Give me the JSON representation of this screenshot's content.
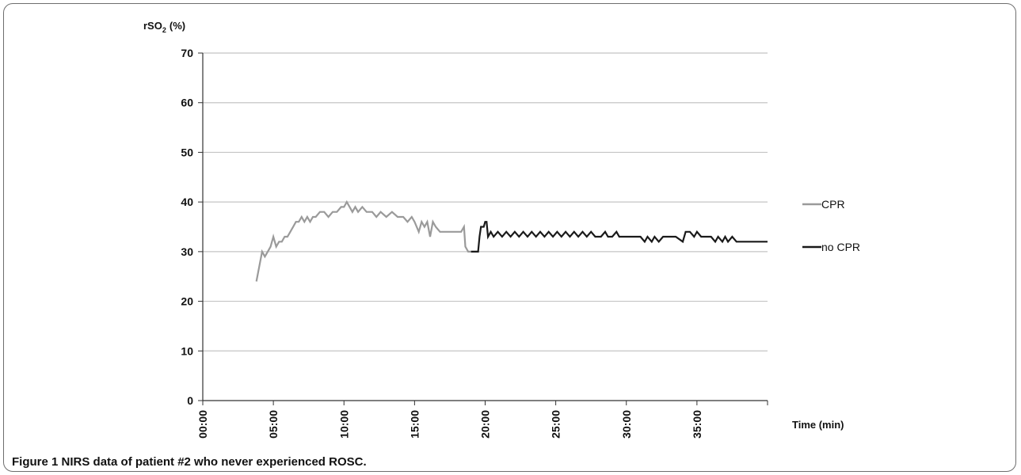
{
  "figure": {
    "label": "Figure 1",
    "caption": "NIRS data of patient #2 who never experienced ROSC."
  },
  "chart_data": {
    "type": "line",
    "ylabel_main": "rSO",
    "ylabel_sub": "2",
    "ylabel_unit": "(%)",
    "xlabel": "Time (min)",
    "ylim": [
      0,
      70
    ],
    "xlim": [
      0,
      40
    ],
    "yticks": [
      0,
      10,
      20,
      30,
      40,
      50,
      60,
      70
    ],
    "xticks": [
      {
        "v": 0,
        "label": "00:00"
      },
      {
        "v": 5,
        "label": "05:00"
      },
      {
        "v": 10,
        "label": "10:00"
      },
      {
        "v": 15,
        "label": "15:00"
      },
      {
        "v": 20,
        "label": "20:00"
      },
      {
        "v": 25,
        "label": "25:00"
      },
      {
        "v": 30,
        "label": "30:00"
      },
      {
        "v": 35,
        "label": "35:00"
      }
    ],
    "grid": true,
    "legend_position": "right",
    "series": [
      {
        "name": "CPR",
        "color": "#9a9a9a",
        "points": [
          [
            3.8,
            24
          ],
          [
            4.0,
            27
          ],
          [
            4.2,
            30
          ],
          [
            4.4,
            29
          ],
          [
            4.6,
            30
          ],
          [
            4.8,
            31
          ],
          [
            5.0,
            33
          ],
          [
            5.2,
            31
          ],
          [
            5.4,
            32
          ],
          [
            5.6,
            32
          ],
          [
            5.8,
            33
          ],
          [
            6.0,
            33
          ],
          [
            6.2,
            34
          ],
          [
            6.4,
            35
          ],
          [
            6.6,
            36
          ],
          [
            6.8,
            36
          ],
          [
            7.0,
            37
          ],
          [
            7.2,
            36
          ],
          [
            7.4,
            37
          ],
          [
            7.6,
            36
          ],
          [
            7.8,
            37
          ],
          [
            8.0,
            37
          ],
          [
            8.3,
            38
          ],
          [
            8.6,
            38
          ],
          [
            8.9,
            37
          ],
          [
            9.2,
            38
          ],
          [
            9.5,
            38
          ],
          [
            9.8,
            39
          ],
          [
            10.0,
            39
          ],
          [
            10.2,
            40
          ],
          [
            10.4,
            39
          ],
          [
            10.6,
            38
          ],
          [
            10.8,
            39
          ],
          [
            11.0,
            38
          ],
          [
            11.3,
            39
          ],
          [
            11.6,
            38
          ],
          [
            12.0,
            38
          ],
          [
            12.3,
            37
          ],
          [
            12.6,
            38
          ],
          [
            13.0,
            37
          ],
          [
            13.4,
            38
          ],
          [
            13.8,
            37
          ],
          [
            14.2,
            37
          ],
          [
            14.5,
            36
          ],
          [
            14.8,
            37
          ],
          [
            15.0,
            36
          ],
          [
            15.3,
            34
          ],
          [
            15.5,
            36
          ],
          [
            15.7,
            35
          ],
          [
            15.9,
            36
          ],
          [
            16.1,
            33
          ],
          [
            16.3,
            36
          ],
          [
            16.5,
            35
          ],
          [
            16.8,
            34
          ],
          [
            17.2,
            34
          ],
          [
            17.6,
            34
          ],
          [
            18.0,
            34
          ],
          [
            18.3,
            34
          ],
          [
            18.5,
            35
          ],
          [
            18.6,
            31
          ],
          [
            18.8,
            30
          ],
          [
            19.0,
            30
          ],
          [
            19.4,
            30
          ]
        ]
      },
      {
        "name": "no CPR",
        "color": "#1a1a1a",
        "points": [
          [
            19.0,
            30
          ],
          [
            19.5,
            30
          ],
          [
            19.6,
            33
          ],
          [
            19.7,
            35
          ],
          [
            19.9,
            35
          ],
          [
            20.0,
            36
          ],
          [
            20.1,
            36
          ],
          [
            20.2,
            33
          ],
          [
            20.4,
            34
          ],
          [
            20.6,
            33
          ],
          [
            20.9,
            34
          ],
          [
            21.2,
            33
          ],
          [
            21.5,
            34
          ],
          [
            21.8,
            33
          ],
          [
            22.1,
            34
          ],
          [
            22.4,
            33
          ],
          [
            22.7,
            34
          ],
          [
            23.0,
            33
          ],
          [
            23.3,
            34
          ],
          [
            23.6,
            33
          ],
          [
            23.9,
            34
          ],
          [
            24.2,
            33
          ],
          [
            24.5,
            34
          ],
          [
            24.8,
            33
          ],
          [
            25.1,
            34
          ],
          [
            25.4,
            33
          ],
          [
            25.7,
            34
          ],
          [
            26.0,
            33
          ],
          [
            26.3,
            34
          ],
          [
            26.6,
            33
          ],
          [
            26.9,
            34
          ],
          [
            27.2,
            33
          ],
          [
            27.5,
            34
          ],
          [
            27.8,
            33
          ],
          [
            28.2,
            33
          ],
          [
            28.5,
            34
          ],
          [
            28.7,
            33
          ],
          [
            29.0,
            33
          ],
          [
            29.3,
            34
          ],
          [
            29.5,
            33
          ],
          [
            30.0,
            33
          ],
          [
            30.5,
            33
          ],
          [
            31.0,
            33
          ],
          [
            31.3,
            32
          ],
          [
            31.5,
            33
          ],
          [
            31.8,
            32
          ],
          [
            32.0,
            33
          ],
          [
            32.3,
            32
          ],
          [
            32.6,
            33
          ],
          [
            33.0,
            33
          ],
          [
            33.5,
            33
          ],
          [
            34.0,
            32
          ],
          [
            34.2,
            34
          ],
          [
            34.5,
            34
          ],
          [
            34.8,
            33
          ],
          [
            35.0,
            34
          ],
          [
            35.3,
            33
          ],
          [
            35.6,
            33
          ],
          [
            36.0,
            33
          ],
          [
            36.3,
            32
          ],
          [
            36.5,
            33
          ],
          [
            36.8,
            32
          ],
          [
            37.0,
            33
          ],
          [
            37.2,
            32
          ],
          [
            37.5,
            33
          ],
          [
            37.8,
            32
          ],
          [
            38.5,
            32
          ],
          [
            39.2,
            32
          ],
          [
            40.0,
            32
          ]
        ]
      }
    ]
  }
}
